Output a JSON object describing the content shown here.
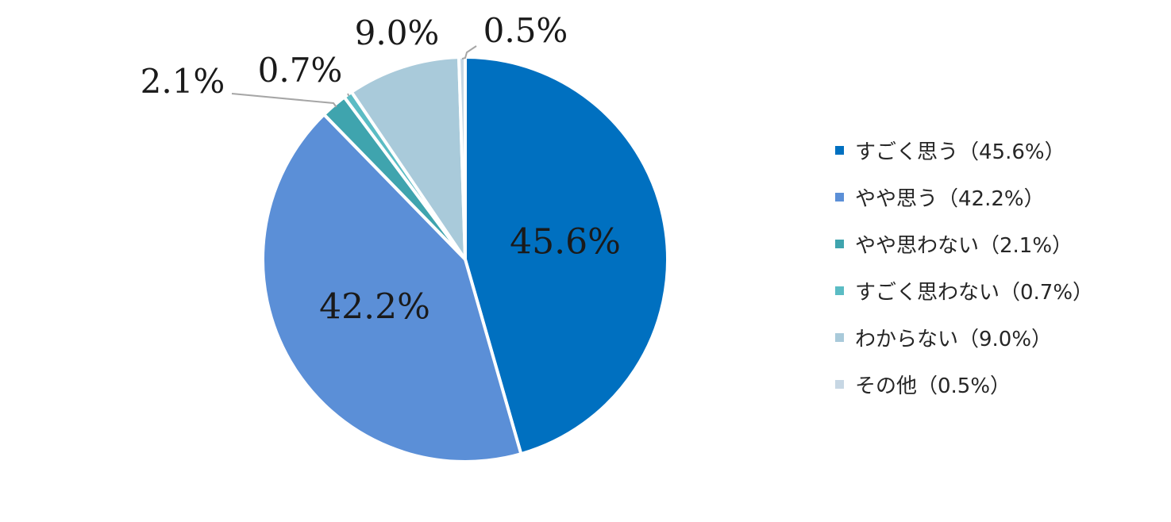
{
  "chart_data": {
    "type": "pie",
    "slices": [
      {
        "label": "すごく思う",
        "legend_text": "すごく思う（45.6%）",
        "value": 45.6,
        "value_label": "45.6%",
        "color": "#0070c0"
      },
      {
        "label": "やや思う",
        "legend_text": "やや思う（42.2%）",
        "value": 42.2,
        "value_label": "42.2%",
        "color": "#5b8fd7"
      },
      {
        "label": "やや思わない",
        "legend_text": "やや思わない（2.1%）",
        "value": 2.1,
        "value_label": "2.1%",
        "color": "#3fa4ae"
      },
      {
        "label": "すごく思わない",
        "legend_text": "すごく思わない（0.7%）",
        "value": 0.7,
        "value_label": "0.7%",
        "color": "#5bbcc4"
      },
      {
        "label": "わからない",
        "legend_text": "わからない（9.0%）",
        "value": 9.0,
        "value_label": "9.0%",
        "color": "#a9cada"
      },
      {
        "label": "その他",
        "legend_text": "その他（0.5%）",
        "value": 0.5,
        "value_label": "0.5%",
        "color": "#c7d7e4"
      }
    ],
    "legend_position": "right"
  }
}
